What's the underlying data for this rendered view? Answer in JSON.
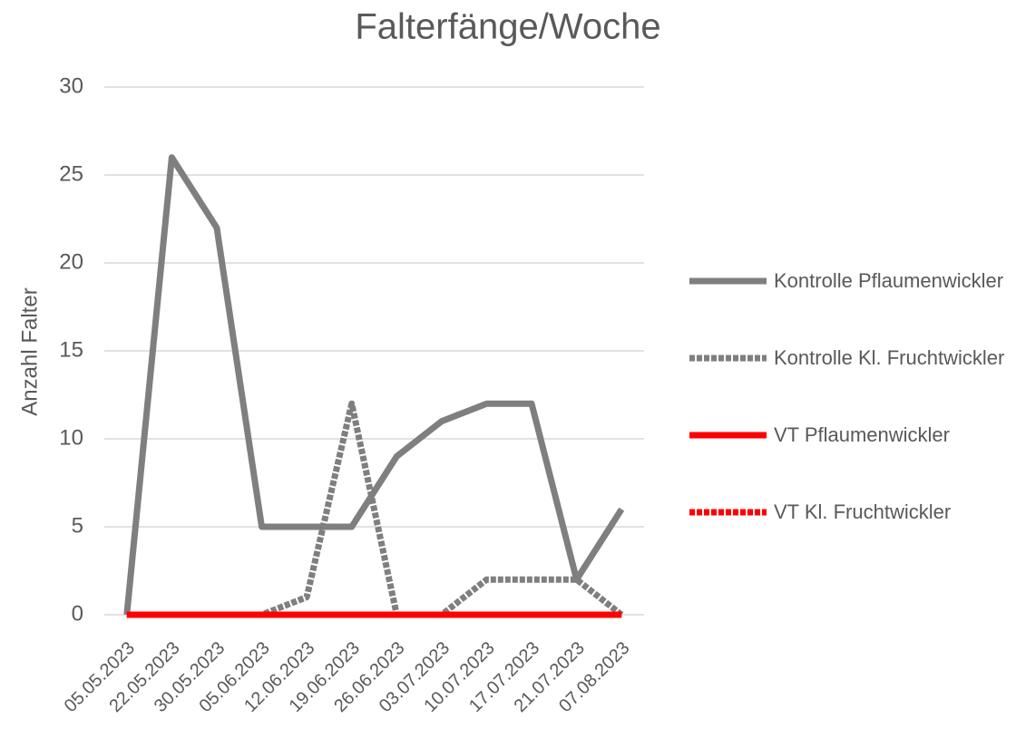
{
  "chart_data": {
    "type": "line",
    "title": "Falterfänge/Woche",
    "ylabel": "Anzahl Falter",
    "categories": [
      "05.05.2023",
      "22.05.2023",
      "30.05.2023",
      "05.06.2023",
      "12.06.2023",
      "19.06.2023",
      "26.06.2023",
      "03.07.2023",
      "10.07.2023",
      "17.07.2023",
      "21.07.2023",
      "07.08.2023"
    ],
    "series": [
      {
        "name": "Kontrolle Pflaumenwickler",
        "color": "#7f7f7f",
        "style": "solid",
        "values": [
          0,
          26,
          22,
          5,
          5,
          5,
          9,
          11,
          12,
          12,
          2,
          6
        ]
      },
      {
        "name": "Kontrolle Kl. Fruchtwickler",
        "color": "#7f7f7f",
        "style": "dashed",
        "values": [
          0,
          0,
          0,
          0,
          1,
          12,
          0,
          0,
          2,
          2,
          2,
          0
        ]
      },
      {
        "name": "VT Pflaumenwickler",
        "color": "#ff0000",
        "style": "solid",
        "values": [
          0,
          0,
          0,
          0,
          0,
          0,
          0,
          0,
          0,
          0,
          0,
          0
        ]
      },
      {
        "name": "VT Kl. Fruchtwickler",
        "color": "#ff0000",
        "style": "dashed",
        "values": [
          0,
          0,
          0,
          0,
          0,
          0,
          0,
          0,
          0,
          0,
          0,
          0
        ]
      }
    ],
    "ylim": [
      0,
      30
    ],
    "yticks": [
      0,
      5,
      10,
      15,
      20,
      25,
      30
    ],
    "grid": true,
    "legend": "right"
  }
}
